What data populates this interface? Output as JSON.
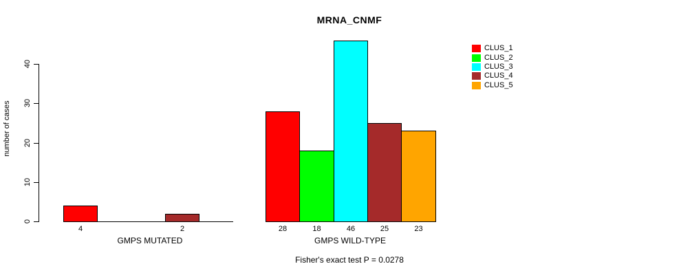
{
  "chart_data": {
    "type": "bar",
    "title": "MRNA_CNMF",
    "ylabel": "number of cases",
    "xlabel": "",
    "yticks": [
      0,
      10,
      20,
      30,
      40
    ],
    "ylim": [
      0,
      46
    ],
    "grid": false,
    "legend_position": "right",
    "series_names": [
      "CLUS_1",
      "CLUS_2",
      "CLUS_3",
      "CLUS_4",
      "CLUS_5"
    ],
    "colors": [
      "#ff0000",
      "#00ff00",
      "#00ffff",
      "#a52a2a",
      "#ffa500"
    ],
    "groups": [
      {
        "label": "GMPS MUTATED",
        "values": [
          4,
          0,
          0,
          2,
          0
        ],
        "visible_bar_labels": [
          "4",
          "2"
        ]
      },
      {
        "label": "GMPS WILD-TYPE",
        "values": [
          28,
          18,
          46,
          25,
          23
        ],
        "visible_bar_labels": [
          "28",
          "18",
          "46",
          "25",
          "23"
        ]
      }
    ],
    "annotation": "Fisher's exact test P = 0.0278"
  }
}
